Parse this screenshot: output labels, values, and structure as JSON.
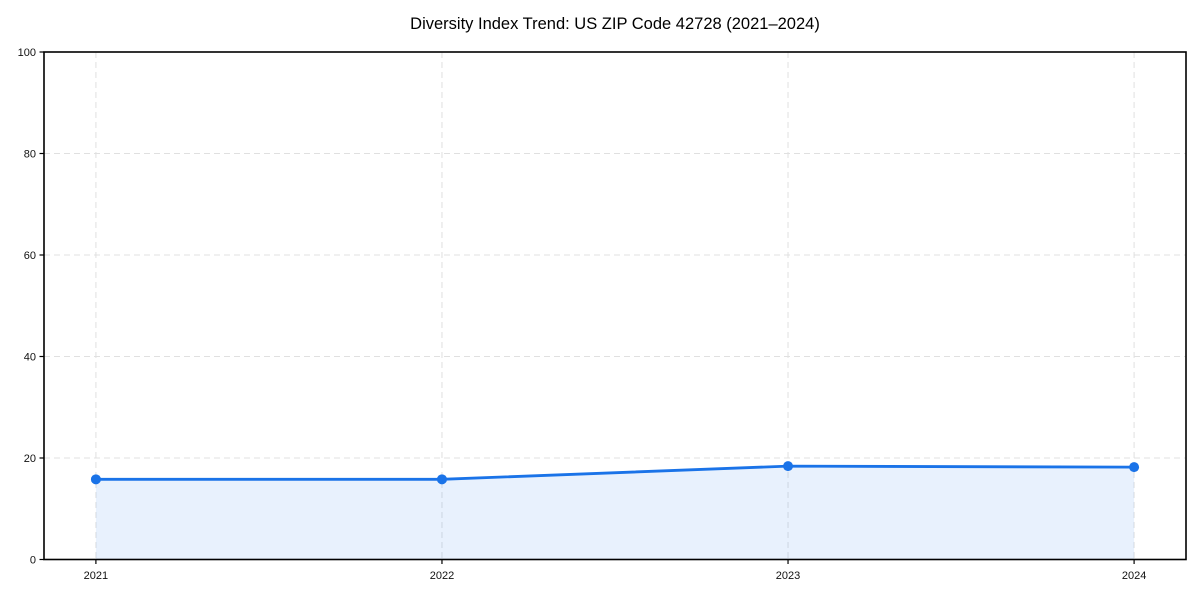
{
  "chart_data": {
    "type": "area",
    "title": "Diversity Index Trend: US ZIP Code 42728 (2021–2024)",
    "x": [
      2021,
      2022,
      2023,
      2024
    ],
    "xticklabels": [
      "2021",
      "2022",
      "2023",
      "2024"
    ],
    "series": [
      {
        "name": "Diversity Index",
        "values": [
          15.8,
          15.8,
          18.4,
          18.2
        ]
      }
    ],
    "xlabel": "",
    "ylabel": "",
    "ylim": [
      0,
      100
    ],
    "yticks": [
      0,
      20,
      40,
      60,
      80,
      100
    ],
    "grid": true,
    "grid_style": "dashed",
    "legend_position": "none",
    "colors": {
      "line": "#1a73e8",
      "marker": "#1a73e8",
      "area_fill": "rgba(26,115,232,0.10)",
      "grid": "#e0e0e0",
      "border": "#000000",
      "tick_label": "#111111",
      "title": "#000000",
      "background": "#ffffff"
    }
  }
}
